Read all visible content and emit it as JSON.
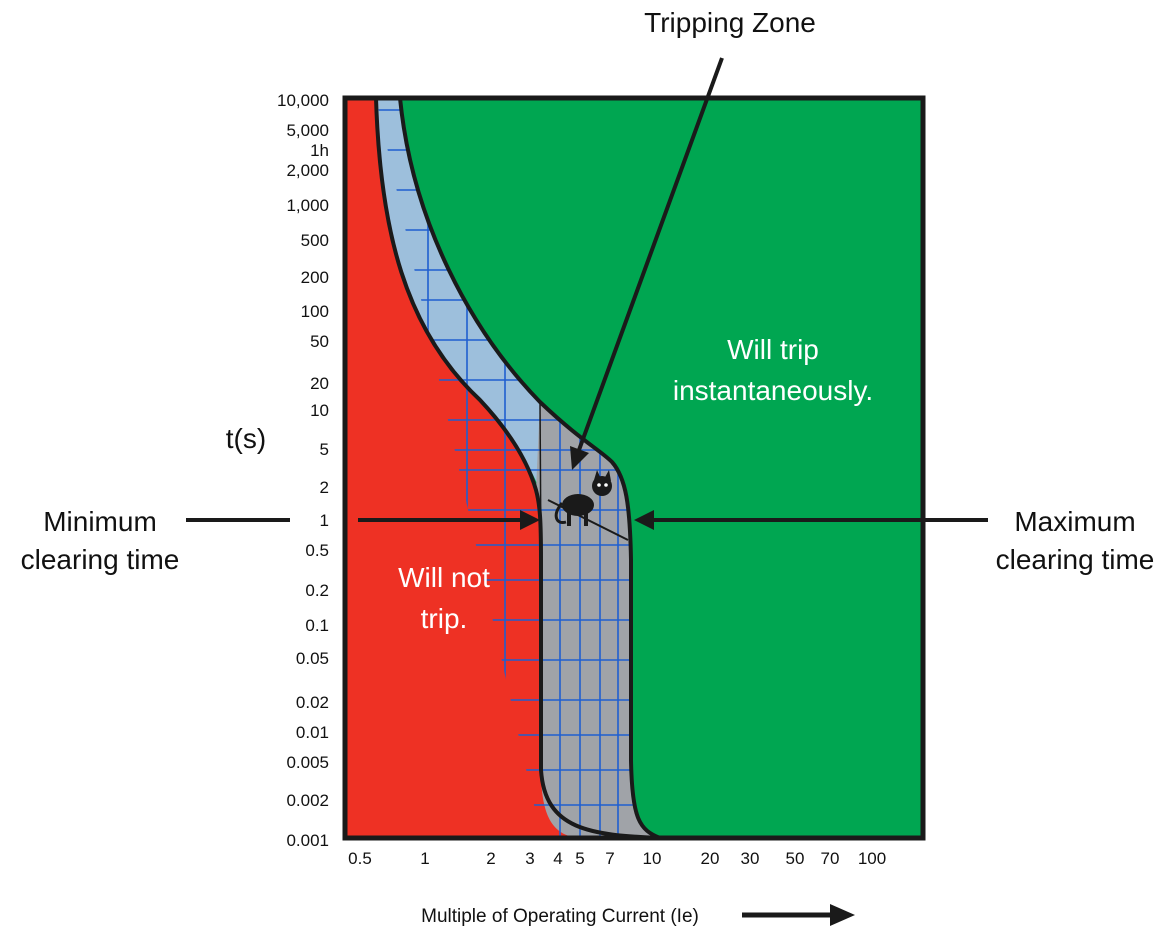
{
  "title": "Tripping Zone",
  "y_axis_label": "t(s)",
  "x_axis_label": "Multiple of Operating Current (Ie)",
  "y_ticks": [
    "10,000",
    "5,000",
    "1h",
    "2,000",
    "1,000",
    "500",
    "200",
    "100",
    "50",
    "20",
    "10",
    "5",
    "2",
    "1",
    "0.5",
    "0.2",
    "0.1",
    "0.05",
    "0.02",
    "0.01",
    "0.005",
    "0.002",
    "0.001"
  ],
  "x_ticks": [
    "0.5",
    "1",
    "2",
    "3",
    "4",
    "5",
    "7",
    "10",
    "20",
    "30",
    "50",
    "70",
    "100"
  ],
  "left_label": {
    "line1": "Minimum",
    "line2": "clearing time"
  },
  "right_label": {
    "line1": "Maximum",
    "line2": "clearing time"
  },
  "no_trip_label": {
    "line1": "Will not",
    "line2": "trip."
  },
  "trip_label": {
    "line1": "Will trip",
    "line2": "instantaneously."
  },
  "colors": {
    "no_trip": "#ee3124",
    "trip": "#00a651",
    "band_upper": "#9dbfdc",
    "band_lower": "#a0a3a8",
    "grid": "#1f5fd0",
    "outline": "#1a1a1a"
  }
}
